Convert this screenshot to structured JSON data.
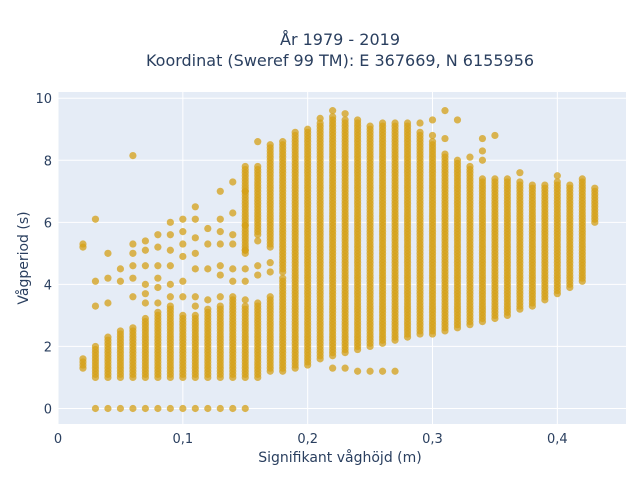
{
  "chart_data": {
    "type": "scatter",
    "title_lines": [
      "År 1979 - 2019",
      "Koordinat (Sweref 99 TM): E 367669, N 6155956"
    ],
    "xlabel": "Signifikant våghöjd (m)",
    "ylabel": "Vågperiod (s)",
    "xlim": [
      0,
      0.455
    ],
    "ylim": [
      -0.5,
      10.2
    ],
    "x_ticks": [
      0,
      0.1,
      0.2,
      0.3,
      0.4
    ],
    "x_tick_labels": [
      "0",
      "0,1",
      "0,2",
      "0,3",
      "0,4"
    ],
    "y_ticks": [
      0,
      2,
      4,
      6,
      8,
      10
    ],
    "y_tick_labels": [
      "0",
      "2",
      "4",
      "6",
      "8",
      "10"
    ],
    "grid": true,
    "colors": {
      "marker": "#d4a017",
      "plot_bg": "#e5ecf6",
      "grid": "#ffffff",
      "text": "#2a3f5f"
    },
    "columns": [
      {
        "x": 0.02,
        "y_min": 1.3,
        "y_max": 1.6,
        "extra": [
          5.2,
          5.3
        ]
      },
      {
        "x": 0.03,
        "y_min": 1.0,
        "y_max": 2.0,
        "extra": [
          0,
          3.3,
          4.1,
          6.1
        ]
      },
      {
        "x": 0.04,
        "y_min": 1.0,
        "y_max": 2.3,
        "extra": [
          0,
          3.4,
          4.2,
          5.0
        ]
      },
      {
        "x": 0.05,
        "y_min": 1.0,
        "y_max": 2.5,
        "extra": [
          0,
          4.1,
          4.5
        ]
      },
      {
        "x": 0.06,
        "y_min": 1.0,
        "y_max": 2.6,
        "extra": [
          0,
          3.6,
          4.2,
          4.6,
          5.0,
          5.3,
          8.15
        ]
      },
      {
        "x": 0.07,
        "y_min": 1.0,
        "y_max": 2.9,
        "extra": [
          0,
          3.4,
          3.7,
          4.0,
          4.6,
          5.1,
          5.4
        ]
      },
      {
        "x": 0.08,
        "y_min": 1.0,
        "y_max": 3.1,
        "extra": [
          0,
          3.4,
          3.9,
          4.2,
          4.6,
          5.2,
          5.6
        ]
      },
      {
        "x": 0.09,
        "y_min": 1.0,
        "y_max": 3.3,
        "extra": [
          0,
          3.6,
          4.0,
          4.6,
          5.1,
          5.6,
          6.0
        ]
      },
      {
        "x": 0.1,
        "y_min": 1.0,
        "y_max": 3.0,
        "extra": [
          0,
          3.6,
          4.1,
          4.9,
          5.3,
          5.7,
          6.1
        ]
      },
      {
        "x": 0.11,
        "y_min": 1.0,
        "y_max": 3.0,
        "extra": [
          0,
          3.3,
          3.6,
          4.5,
          5.0,
          5.5,
          6.1,
          6.5
        ]
      },
      {
        "x": 0.12,
        "y_min": 1.0,
        "y_max": 3.2,
        "extra": [
          0,
          3.5,
          4.5,
          5.3,
          5.8
        ]
      },
      {
        "x": 0.13,
        "y_min": 1.0,
        "y_max": 3.3,
        "extra": [
          0,
          3.6,
          4.3,
          4.6,
          5.3,
          5.7,
          6.1,
          7.0
        ]
      },
      {
        "x": 0.14,
        "y_min": 1.0,
        "y_max": 3.5,
        "extra": [
          0,
          3.6,
          4.1,
          4.5,
          5.3,
          5.6,
          6.3,
          7.3
        ]
      },
      {
        "x": 0.15,
        "y_min": 1.0,
        "y_max": 3.3,
        "extra": [
          0,
          3.5,
          4.1,
          4.5,
          5.1,
          5.9,
          7.0
        ]
      },
      {
        "x": 0.15,
        "y_min": 5.0,
        "y_max": 7.8,
        "extra": []
      },
      {
        "x": 0.16,
        "y_min": 1.0,
        "y_max": 3.4,
        "extra": [
          4.3,
          4.6,
          5.4,
          8.6
        ]
      },
      {
        "x": 0.16,
        "y_min": 5.6,
        "y_max": 7.8,
        "extra": []
      },
      {
        "x": 0.17,
        "y_min": 1.2,
        "y_max": 3.6,
        "extra": [
          4.4,
          4.7
        ]
      },
      {
        "x": 0.17,
        "y_min": 5.2,
        "y_max": 8.5,
        "extra": []
      },
      {
        "x": 0.18,
        "y_min": 1.2,
        "y_max": 4.2,
        "extra": []
      },
      {
        "x": 0.18,
        "y_min": 4.4,
        "y_max": 8.6,
        "extra": []
      },
      {
        "x": 0.19,
        "y_min": 1.3,
        "y_max": 8.9,
        "extra": []
      },
      {
        "x": 0.2,
        "y_min": 1.4,
        "y_max": 9.0,
        "extra": []
      },
      {
        "x": 0.21,
        "y_min": 1.6,
        "y_max": 9.2,
        "extra": [
          9.35
        ]
      },
      {
        "x": 0.22,
        "y_min": 1.7,
        "y_max": 9.4,
        "extra": [
          1.3,
          9.6
        ]
      },
      {
        "x": 0.23,
        "y_min": 1.8,
        "y_max": 9.3,
        "extra": [
          1.3,
          9.5
        ]
      },
      {
        "x": 0.24,
        "y_min": 1.9,
        "y_max": 9.3,
        "extra": [
          1.2
        ]
      },
      {
        "x": 0.25,
        "y_min": 2.0,
        "y_max": 9.1,
        "extra": [
          1.2
        ]
      },
      {
        "x": 0.26,
        "y_min": 2.1,
        "y_max": 9.2,
        "extra": [
          1.2
        ]
      },
      {
        "x": 0.27,
        "y_min": 2.2,
        "y_max": 9.2,
        "extra": [
          1.2
        ]
      },
      {
        "x": 0.28,
        "y_min": 2.3,
        "y_max": 9.2,
        "extra": []
      },
      {
        "x": 0.29,
        "y_min": 2.4,
        "y_max": 8.9,
        "extra": [
          9.2
        ]
      },
      {
        "x": 0.3,
        "y_min": 2.4,
        "y_max": 8.6,
        "extra": [
          8.8,
          9.3
        ]
      },
      {
        "x": 0.31,
        "y_min": 2.5,
        "y_max": 8.2,
        "extra": [
          8.7,
          9.6
        ]
      },
      {
        "x": 0.32,
        "y_min": 2.6,
        "y_max": 8.0,
        "extra": [
          9.3
        ]
      },
      {
        "x": 0.33,
        "y_min": 2.7,
        "y_max": 7.8,
        "extra": [
          8.1
        ]
      },
      {
        "x": 0.34,
        "y_min": 2.8,
        "y_max": 7.4,
        "extra": [
          8.0,
          8.3,
          8.7
        ]
      },
      {
        "x": 0.35,
        "y_min": 2.9,
        "y_max": 7.4,
        "extra": [
          8.8
        ]
      },
      {
        "x": 0.36,
        "y_min": 3.0,
        "y_max": 7.4,
        "extra": []
      },
      {
        "x": 0.37,
        "y_min": 3.2,
        "y_max": 7.3,
        "extra": [
          7.6
        ]
      },
      {
        "x": 0.38,
        "y_min": 3.3,
        "y_max": 7.2,
        "extra": []
      },
      {
        "x": 0.39,
        "y_min": 3.5,
        "y_max": 7.2,
        "extra": []
      },
      {
        "x": 0.4,
        "y_min": 3.7,
        "y_max": 7.3,
        "extra": [
          7.5
        ]
      },
      {
        "x": 0.41,
        "y_min": 3.9,
        "y_max": 7.2,
        "extra": []
      },
      {
        "x": 0.42,
        "y_min": 4.1,
        "y_max": 7.4,
        "extra": []
      },
      {
        "x": 0.43,
        "y_min": 6.0,
        "y_max": 7.1,
        "extra": []
      }
    ]
  }
}
